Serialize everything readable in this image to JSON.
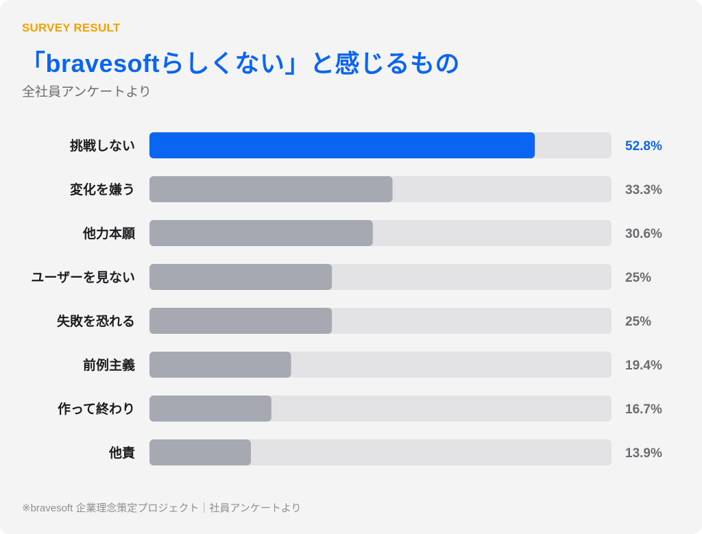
{
  "header": {
    "eyebrow": "SURVEY RESULT",
    "title": "「bravesoftらしくない」と感じるもの",
    "subtitle": "全社員アンケートより"
  },
  "footer": {
    "note": "※bravesoft 企業理念策定プロジェクト｜社員アンケートより"
  },
  "colors": {
    "eyebrow": "#f5a100",
    "title": "#0a66f0",
    "highlight_bar": "#0a66f0",
    "bar": "#a6a9b1",
    "track": "#e3e3e5",
    "category_text": "#1c1c1e",
    "value_text": "#6b6b70"
  },
  "chart_data": {
    "type": "bar",
    "orientation": "horizontal",
    "categories": [
      "挑戦しない",
      "変化を嫌う",
      "他力本願",
      "ユーザーを見ない",
      "失敗を恐れる",
      "前例主義",
      "作って終わり",
      "他責"
    ],
    "values": [
      52.8,
      33.3,
      30.6,
      25,
      25,
      19.4,
      16.7,
      13.9
    ],
    "value_labels": [
      "52.8%",
      "33.3%",
      "30.6%",
      "25%",
      "25%",
      "19.4%",
      "16.7%",
      "13.9%"
    ],
    "highlight_index": 0,
    "xlim": [
      0,
      63.3
    ],
    "grid": false
  }
}
